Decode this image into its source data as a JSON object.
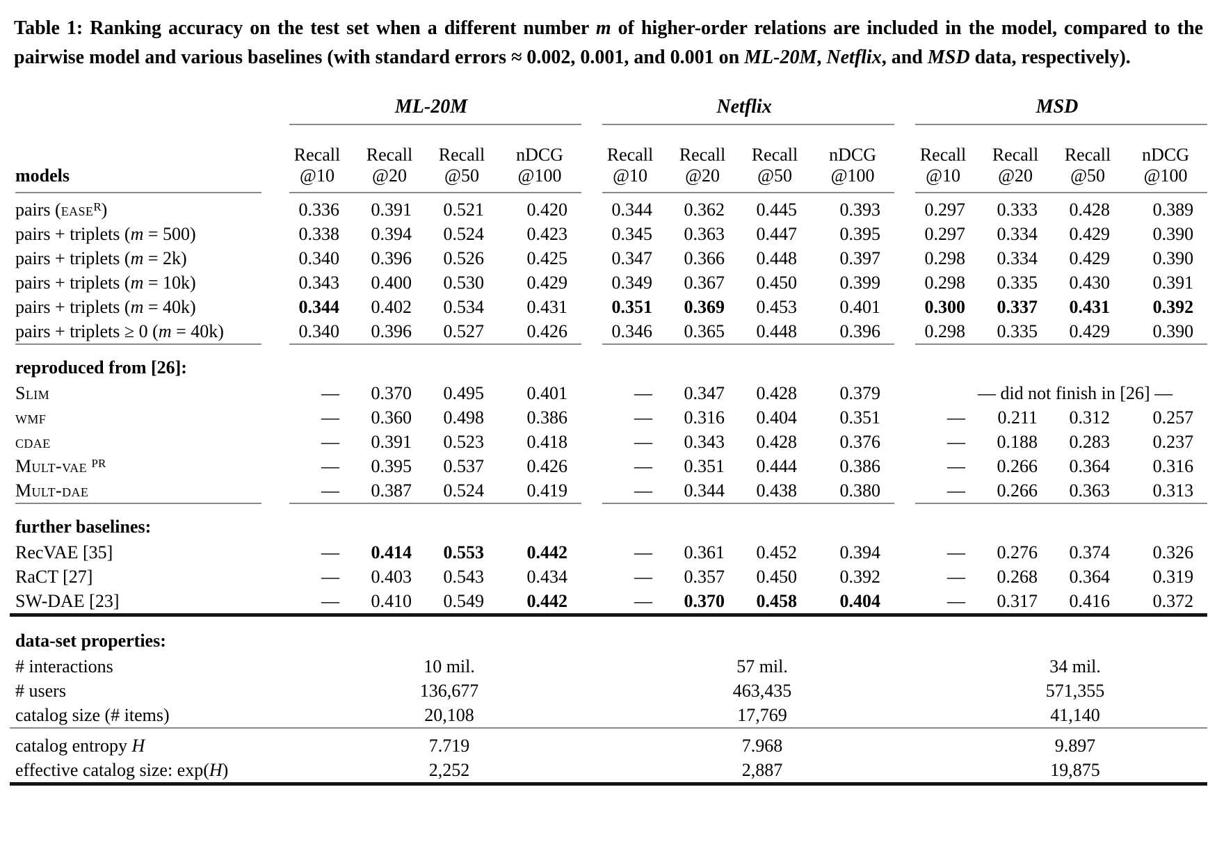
{
  "caption": {
    "parts": [
      {
        "t": "Table 1: Ranking accuracy on the test set when a different number "
      },
      {
        "t": "m",
        "s": "i"
      },
      {
        "t": " of higher-order relations are included in the model, compared to the pairwise model and various baselines (with standard errors ≈ 0.002, 0.001, and 0.001 on "
      },
      {
        "t": "ML-20M",
        "s": "i"
      },
      {
        "t": ", "
      },
      {
        "t": "Netflix",
        "s": "i"
      },
      {
        "t": ", and "
      },
      {
        "t": "MSD",
        "s": "i"
      },
      {
        "t": " data, respectively)."
      }
    ]
  },
  "table": {
    "models_label": "models",
    "groups": [
      "ML-20M",
      "Netflix",
      "MSD"
    ],
    "metrics": [
      {
        "l1": "Recall",
        "l2": "@10"
      },
      {
        "l1": "Recall",
        "l2": "@20"
      },
      {
        "l1": "Recall",
        "l2": "@50"
      },
      {
        "l1": "nDCG",
        "l2": "@100"
      }
    ],
    "sections": [
      {
        "rule_after": "seg",
        "rows": [
          {
            "label": [
              {
                "t": "pairs ("
              },
              {
                "t": "ease",
                "s": "sc"
              },
              {
                "t": "R",
                "s": "sup"
              },
              {
                "t": ")"
              }
            ],
            "cells": [
              {
                "t": "0.336"
              },
              {
                "t": "0.391"
              },
              {
                "t": "0.521"
              },
              {
                "t": "0.420"
              },
              {
                "t": "0.344"
              },
              {
                "t": "0.362"
              },
              {
                "t": "0.445"
              },
              {
                "t": "0.393"
              },
              {
                "t": "0.297"
              },
              {
                "t": "0.333"
              },
              {
                "t": "0.428"
              },
              {
                "t": "0.389"
              }
            ]
          },
          {
            "label": [
              {
                "t": "pairs + triplets ("
              },
              {
                "t": "m",
                "s": "i"
              },
              {
                "t": " = 500)"
              }
            ],
            "cells": [
              {
                "t": "0.338"
              },
              {
                "t": "0.394"
              },
              {
                "t": "0.524"
              },
              {
                "t": "0.423"
              },
              {
                "t": "0.345"
              },
              {
                "t": "0.363"
              },
              {
                "t": "0.447"
              },
              {
                "t": "0.395"
              },
              {
                "t": "0.297"
              },
              {
                "t": "0.334"
              },
              {
                "t": "0.429"
              },
              {
                "t": "0.390"
              }
            ]
          },
          {
            "label": [
              {
                "t": "pairs + triplets ("
              },
              {
                "t": "m",
                "s": "i"
              },
              {
                "t": " = 2k)"
              }
            ],
            "cells": [
              {
                "t": "0.340"
              },
              {
                "t": "0.396"
              },
              {
                "t": "0.526"
              },
              {
                "t": "0.425"
              },
              {
                "t": "0.347"
              },
              {
                "t": "0.366"
              },
              {
                "t": "0.448"
              },
              {
                "t": "0.397"
              },
              {
                "t": "0.298"
              },
              {
                "t": "0.334"
              },
              {
                "t": "0.429"
              },
              {
                "t": "0.390"
              }
            ]
          },
          {
            "label": [
              {
                "t": "pairs + triplets ("
              },
              {
                "t": "m",
                "s": "i"
              },
              {
                "t": " = 10k)"
              }
            ],
            "cells": [
              {
                "t": "0.343"
              },
              {
                "t": "0.400"
              },
              {
                "t": "0.530"
              },
              {
                "t": "0.429"
              },
              {
                "t": "0.349"
              },
              {
                "t": "0.367"
              },
              {
                "t": "0.450"
              },
              {
                "t": "0.399"
              },
              {
                "t": "0.298"
              },
              {
                "t": "0.335"
              },
              {
                "t": "0.430"
              },
              {
                "t": "0.391"
              }
            ]
          },
          {
            "label": [
              {
                "t": "pairs + triplets ("
              },
              {
                "t": "m",
                "s": "i"
              },
              {
                "t": " = 40k)"
              }
            ],
            "cells": [
              {
                "t": "0.344",
                "b": 1
              },
              {
                "t": "0.402"
              },
              {
                "t": "0.534"
              },
              {
                "t": "0.431"
              },
              {
                "t": "0.351",
                "b": 1
              },
              {
                "t": "0.369",
                "b": 1
              },
              {
                "t": "0.453"
              },
              {
                "t": "0.401"
              },
              {
                "t": "0.300",
                "b": 1
              },
              {
                "t": "0.337",
                "b": 1
              },
              {
                "t": "0.431",
                "b": 1
              },
              {
                "t": "0.392",
                "b": 1
              }
            ]
          },
          {
            "label": [
              {
                "t": "pairs + triplets ≥ 0 ("
              },
              {
                "t": "m",
                "s": "i"
              },
              {
                "t": " = 40k)"
              }
            ],
            "cells": [
              {
                "t": "0.340"
              },
              {
                "t": "0.396"
              },
              {
                "t": "0.527"
              },
              {
                "t": "0.426"
              },
              {
                "t": "0.346"
              },
              {
                "t": "0.365"
              },
              {
                "t": "0.448"
              },
              {
                "t": "0.396"
              },
              {
                "t": "0.298"
              },
              {
                "t": "0.335"
              },
              {
                "t": "0.429"
              },
              {
                "t": "0.390"
              }
            ]
          }
        ]
      },
      {
        "heading_parts": [
          {
            "t": "reproduced from [26]:"
          }
        ],
        "rule_after": "seg",
        "rows": [
          {
            "label": [
              {
                "t": "Slim",
                "s": "sc"
              }
            ],
            "cells": [
              {
                "t": "—"
              },
              {
                "t": "0.370"
              },
              {
                "t": "0.495"
              },
              {
                "t": "0.401"
              },
              {
                "t": "—"
              },
              {
                "t": "0.347"
              },
              {
                "t": "0.428"
              },
              {
                "t": "0.379"
              },
              {
                "t": "— did not finish in [26] —",
                "span": 4
              }
            ]
          },
          {
            "label": [
              {
                "t": "wmf",
                "s": "sc"
              }
            ],
            "cells": [
              {
                "t": "—"
              },
              {
                "t": "0.360"
              },
              {
                "t": "0.498"
              },
              {
                "t": "0.386"
              },
              {
                "t": "—"
              },
              {
                "t": "0.316"
              },
              {
                "t": "0.404"
              },
              {
                "t": "0.351"
              },
              {
                "t": "—"
              },
              {
                "t": "0.211"
              },
              {
                "t": "0.312"
              },
              {
                "t": "0.257"
              }
            ]
          },
          {
            "label": [
              {
                "t": "cdae",
                "s": "sc"
              }
            ],
            "cells": [
              {
                "t": "—"
              },
              {
                "t": "0.391"
              },
              {
                "t": "0.523"
              },
              {
                "t": "0.418"
              },
              {
                "t": "—"
              },
              {
                "t": "0.343"
              },
              {
                "t": "0.428"
              },
              {
                "t": "0.376"
              },
              {
                "t": "—"
              },
              {
                "t": "0.188"
              },
              {
                "t": "0.283"
              },
              {
                "t": "0.237"
              }
            ]
          },
          {
            "label": [
              {
                "t": "Mult-vae",
                "s": "sc"
              },
              {
                "t": " "
              },
              {
                "t": "PR",
                "s": "sup"
              }
            ],
            "cells": [
              {
                "t": "—"
              },
              {
                "t": "0.395"
              },
              {
                "t": "0.537"
              },
              {
                "t": "0.426"
              },
              {
                "t": "—"
              },
              {
                "t": "0.351"
              },
              {
                "t": "0.444"
              },
              {
                "t": "0.386"
              },
              {
                "t": "—"
              },
              {
                "t": "0.266"
              },
              {
                "t": "0.364"
              },
              {
                "t": "0.316"
              }
            ]
          },
          {
            "label": [
              {
                "t": "Mult-dae",
                "s": "sc"
              }
            ],
            "cells": [
              {
                "t": "—"
              },
              {
                "t": "0.387"
              },
              {
                "t": "0.524"
              },
              {
                "t": "0.419"
              },
              {
                "t": "—"
              },
              {
                "t": "0.344"
              },
              {
                "t": "0.438"
              },
              {
                "t": "0.380"
              },
              {
                "t": "—"
              },
              {
                "t": "0.266"
              },
              {
                "t": "0.363"
              },
              {
                "t": "0.313"
              }
            ]
          }
        ]
      },
      {
        "heading_parts": [
          {
            "t": "further baselines:"
          }
        ],
        "rule_after": "thick",
        "rows": [
          {
            "label": [
              {
                "t": "RecVAE [35]"
              }
            ],
            "cells": [
              {
                "t": "—"
              },
              {
                "t": "0.414",
                "b": 1
              },
              {
                "t": "0.553",
                "b": 1
              },
              {
                "t": "0.442",
                "b": 1
              },
              {
                "t": "—"
              },
              {
                "t": "0.361"
              },
              {
                "t": "0.452"
              },
              {
                "t": "0.394"
              },
              {
                "t": "—"
              },
              {
                "t": "0.276"
              },
              {
                "t": "0.374"
              },
              {
                "t": "0.326"
              }
            ]
          },
          {
            "label": [
              {
                "t": "RaCT [27]"
              }
            ],
            "cells": [
              {
                "t": "—"
              },
              {
                "t": "0.403"
              },
              {
                "t": "0.543"
              },
              {
                "t": "0.434"
              },
              {
                "t": "—"
              },
              {
                "t": "0.357"
              },
              {
                "t": "0.450"
              },
              {
                "t": "0.392"
              },
              {
                "t": "—"
              },
              {
                "t": "0.268"
              },
              {
                "t": "0.364"
              },
              {
                "t": "0.319"
              }
            ]
          },
          {
            "label": [
              {
                "t": "SW-DAE [23]"
              }
            ],
            "cells": [
              {
                "t": "—"
              },
              {
                "t": "0.410"
              },
              {
                "t": "0.549"
              },
              {
                "t": "0.442",
                "b": 1
              },
              {
                "t": "—"
              },
              {
                "t": "0.370",
                "b": 1
              },
              {
                "t": "0.458",
                "b": 1
              },
              {
                "t": "0.404",
                "b": 1
              },
              {
                "t": "—"
              },
              {
                "t": "0.317"
              },
              {
                "t": "0.416"
              },
              {
                "t": "0.372"
              }
            ]
          }
        ]
      },
      {
        "heading_parts": [
          {
            "t": "data-set properties:"
          }
        ],
        "rule_after": "thin",
        "rows": [
          {
            "label": [
              {
                "t": "# interactions"
              }
            ],
            "cells": [
              {
                "t": "10 mil.",
                "span": 4
              },
              {
                "t": "57 mil.",
                "span": 4
              },
              {
                "t": "34 mil.",
                "span": 4
              }
            ]
          },
          {
            "label": [
              {
                "t": "# users"
              }
            ],
            "cells": [
              {
                "t": "136,677",
                "span": 4
              },
              {
                "t": "463,435",
                "span": 4
              },
              {
                "t": "571,355",
                "span": 4
              }
            ]
          },
          {
            "label": [
              {
                "t": "catalog size (# items)"
              }
            ],
            "cells": [
              {
                "t": "20,108",
                "span": 4
              },
              {
                "t": "17,769",
                "span": 4
              },
              {
                "t": "41,140",
                "span": 4
              }
            ]
          }
        ]
      },
      {
        "rule_after": "thick",
        "rows": [
          {
            "label": [
              {
                "t": "catalog entropy "
              },
              {
                "t": "H",
                "s": "i"
              }
            ],
            "cells": [
              {
                "t": "7.719",
                "span": 4
              },
              {
                "t": "7.968",
                "span": 4
              },
              {
                "t": "9.897",
                "span": 4
              }
            ]
          },
          {
            "label": [
              {
                "t": "effective catalog size: exp("
              },
              {
                "t": "H",
                "s": "i"
              },
              {
                "t": ")"
              }
            ],
            "cells": [
              {
                "t": "2,252",
                "span": 4
              },
              {
                "t": "2,887",
                "span": 4
              },
              {
                "t": "19,875",
                "span": 4
              }
            ]
          }
        ]
      }
    ]
  }
}
